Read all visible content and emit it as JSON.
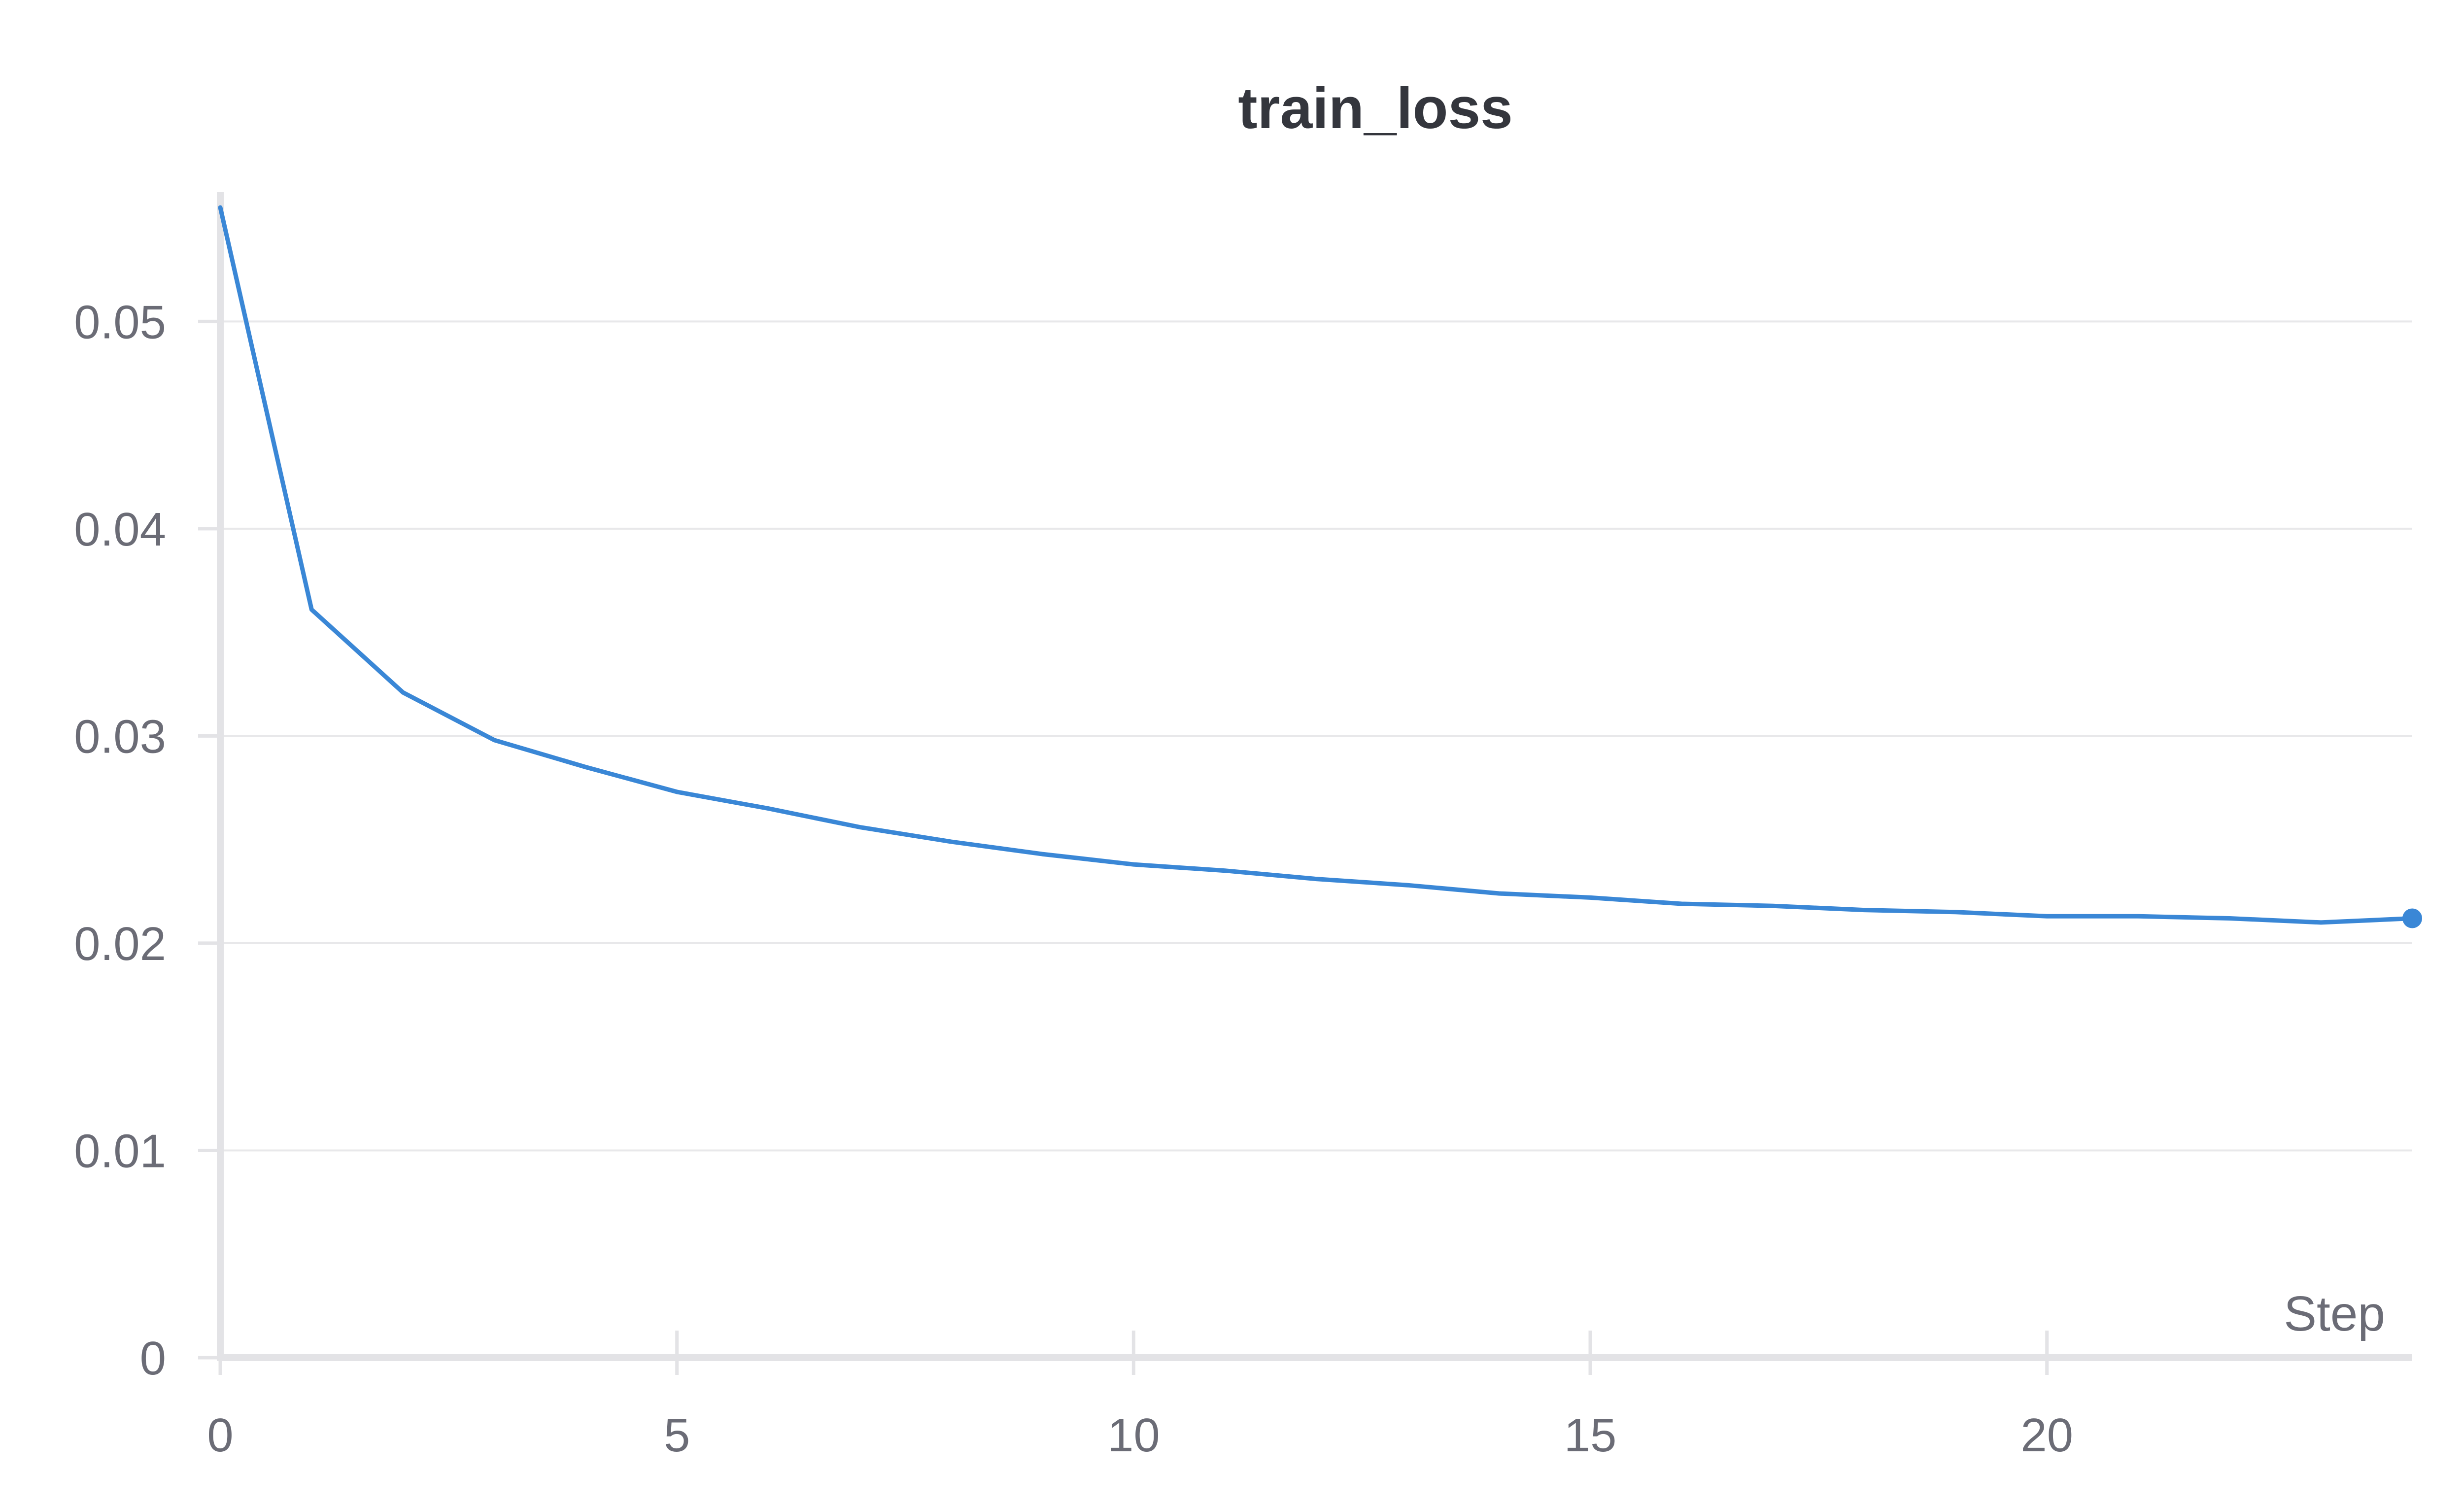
{
  "chart_data": {
    "type": "line",
    "title": "train_loss",
    "xlabel": "Step",
    "ylabel": "",
    "xlim": [
      0,
      24
    ],
    "ylim": [
      0,
      0.056
    ],
    "xticks": [
      0,
      5,
      10,
      15,
      20
    ],
    "xtick_labels": [
      "0",
      "5",
      "10",
      "15",
      "20"
    ],
    "yticks": [
      0,
      0.01,
      0.02,
      0.03,
      0.04,
      0.05
    ],
    "ytick_labels": [
      "0",
      "0.01",
      "0.02",
      "0.03",
      "0.04",
      "0.05"
    ],
    "grid": true,
    "series": [
      {
        "color": "#3a87d6",
        "x": [
          0,
          1,
          2,
          3,
          4,
          5,
          6,
          7,
          8,
          9,
          10,
          11,
          12,
          13,
          14,
          15,
          16,
          17,
          18,
          19,
          20,
          21,
          22,
          23,
          24
        ],
        "y": [
          0.0555,
          0.0361,
          0.0321,
          0.0298,
          0.0285,
          0.0273,
          0.0265,
          0.0256,
          0.0249,
          0.0243,
          0.0238,
          0.0235,
          0.0231,
          0.0228,
          0.0224,
          0.0222,
          0.0219,
          0.0218,
          0.0216,
          0.0215,
          0.0213,
          0.0213,
          0.0212,
          0.021,
          0.0212
        ]
      }
    ]
  }
}
